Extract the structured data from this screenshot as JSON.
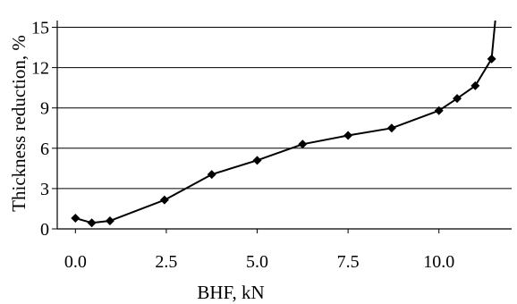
{
  "chart_data": {
    "type": "line",
    "title": "",
    "xlabel": "BHF, kN",
    "ylabel": "Thickness reduction, %",
    "xlim": [
      -0.5,
      12.0
    ],
    "ylim": [
      0,
      15.5
    ],
    "xticks": [
      "0.0",
      "2.5",
      "5.0",
      "7.5",
      "10.0"
    ],
    "yticks": [
      "0",
      "3",
      "6",
      "9",
      "12",
      "15"
    ],
    "grid": "horizontal",
    "series": [
      {
        "x": [
          0.0,
          0.45,
          0.95,
          2.45,
          3.75,
          5.0,
          6.25,
          7.5,
          8.7,
          10.0,
          10.5,
          11.0,
          11.45,
          11.55
        ],
        "y": [
          0.8,
          0.45,
          0.6,
          2.15,
          4.05,
          5.1,
          6.3,
          6.95,
          7.5,
          8.8,
          9.7,
          10.65,
          12.65,
          15.5
        ],
        "marker": "diamond",
        "marked_points": 13,
        "color": "#000000"
      }
    ]
  }
}
